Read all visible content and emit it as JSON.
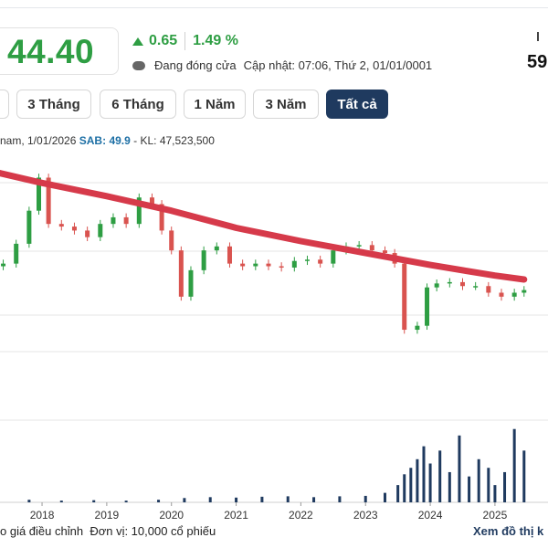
{
  "header": {
    "price": "44.40",
    "change": "0.65",
    "change_pct": "1.49 %",
    "status": "Đang đóng cửa",
    "update": "Cập nhật: 07:06, Thứ 2, 01/01/0001",
    "right_value": "59"
  },
  "ranges": [
    {
      "label": ""
    },
    {
      "label": "3 Tháng"
    },
    {
      "label": "6 Tháng"
    },
    {
      "label": "1 Năm"
    },
    {
      "label": "3 Năm"
    },
    {
      "label": "Tất cả",
      "active": true
    }
  ],
  "legend": {
    "date_text": "nam, 1/01/2026",
    "symbol": "SAB:",
    "value": "49.9",
    "volume_text": "- KL: 47,523,500"
  },
  "footer": {
    "left_text": "o giá điều chỉnh",
    "unit_text": "Đơn vị: 10,000 cổ phiếu",
    "right_link": "Xem đồ thị k"
  },
  "colors": {
    "up": "#2e9e43",
    "down": "#d9534f",
    "ma_line": "#d63a4a",
    "volume": "#1f3a5f",
    "active_button": "#1f3a5f"
  },
  "chart_data": {
    "type": "candlestick",
    "title": "",
    "x_ticks": [
      "2018",
      "2019",
      "2020",
      "2021",
      "2022",
      "2023",
      "2024",
      "2025"
    ],
    "close_series": [
      {
        "x": 2017.4,
        "y": 150
      },
      {
        "x": 2017.6,
        "y": 165
      },
      {
        "x": 2017.8,
        "y": 190
      },
      {
        "x": 2017.95,
        "y": 215
      },
      {
        "x": 2018.1,
        "y": 180
      },
      {
        "x": 2018.3,
        "y": 178
      },
      {
        "x": 2018.5,
        "y": 175
      },
      {
        "x": 2018.7,
        "y": 170
      },
      {
        "x": 2018.9,
        "y": 180
      },
      {
        "x": 2019.1,
        "y": 185
      },
      {
        "x": 2019.3,
        "y": 180
      },
      {
        "x": 2019.5,
        "y": 200
      },
      {
        "x": 2019.7,
        "y": 195
      },
      {
        "x": 2019.85,
        "y": 175
      },
      {
        "x": 2020.0,
        "y": 160
      },
      {
        "x": 2020.15,
        "y": 125
      },
      {
        "x": 2020.3,
        "y": 145
      },
      {
        "x": 2020.5,
        "y": 160
      },
      {
        "x": 2020.7,
        "y": 163
      },
      {
        "x": 2020.9,
        "y": 150
      },
      {
        "x": 2021.1,
        "y": 148
      },
      {
        "x": 2021.3,
        "y": 150
      },
      {
        "x": 2021.5,
        "y": 148
      },
      {
        "x": 2021.7,
        "y": 147
      },
      {
        "x": 2021.9,
        "y": 152
      },
      {
        "x": 2022.1,
        "y": 153
      },
      {
        "x": 2022.3,
        "y": 150
      },
      {
        "x": 2022.5,
        "y": 160
      },
      {
        "x": 2022.7,
        "y": 163
      },
      {
        "x": 2022.9,
        "y": 164
      },
      {
        "x": 2023.1,
        "y": 160
      },
      {
        "x": 2023.3,
        "y": 158
      },
      {
        "x": 2023.45,
        "y": 150
      },
      {
        "x": 2023.6,
        "y": 100
      },
      {
        "x": 2023.8,
        "y": 103
      },
      {
        "x": 2023.95,
        "y": 132
      },
      {
        "x": 2024.1,
        "y": 135
      },
      {
        "x": 2024.3,
        "y": 136
      },
      {
        "x": 2024.5,
        "y": 133
      },
      {
        "x": 2024.7,
        "y": 133
      },
      {
        "x": 2024.9,
        "y": 128
      },
      {
        "x": 2025.1,
        "y": 125
      },
      {
        "x": 2025.3,
        "y": 128
      },
      {
        "x": 2025.45,
        "y": 130
      }
    ],
    "ma_line": [
      {
        "x": 2017.2,
        "y": 220
      },
      {
        "x": 2018.0,
        "y": 211
      },
      {
        "x": 2019.0,
        "y": 201
      },
      {
        "x": 2020.0,
        "y": 190
      },
      {
        "x": 2021.0,
        "y": 177
      },
      {
        "x": 2022.0,
        "y": 167
      },
      {
        "x": 2023.0,
        "y": 158
      },
      {
        "x": 2024.0,
        "y": 149
      },
      {
        "x": 2025.0,
        "y": 141
      },
      {
        "x": 2025.45,
        "y": 138
      }
    ],
    "volume": [
      {
        "x": 2017.3,
        "v": 5
      },
      {
        "x": 2017.8,
        "v": 6
      },
      {
        "x": 2018.3,
        "v": 4
      },
      {
        "x": 2018.8,
        "v": 5
      },
      {
        "x": 2019.3,
        "v": 4
      },
      {
        "x": 2019.8,
        "v": 6
      },
      {
        "x": 2020.2,
        "v": 10
      },
      {
        "x": 2020.6,
        "v": 12
      },
      {
        "x": 2021.0,
        "v": 11
      },
      {
        "x": 2021.4,
        "v": 13
      },
      {
        "x": 2021.8,
        "v": 14
      },
      {
        "x": 2022.2,
        "v": 12
      },
      {
        "x": 2022.6,
        "v": 14
      },
      {
        "x": 2023.0,
        "v": 15
      },
      {
        "x": 2023.3,
        "v": 22
      },
      {
        "x": 2023.5,
        "v": 40
      },
      {
        "x": 2023.6,
        "v": 65
      },
      {
        "x": 2023.7,
        "v": 80
      },
      {
        "x": 2023.8,
        "v": 100
      },
      {
        "x": 2023.9,
        "v": 130
      },
      {
        "x": 2024.0,
        "v": 90
      },
      {
        "x": 2024.15,
        "v": 120
      },
      {
        "x": 2024.3,
        "v": 70
      },
      {
        "x": 2024.45,
        "v": 155
      },
      {
        "x": 2024.6,
        "v": 60
      },
      {
        "x": 2024.75,
        "v": 100
      },
      {
        "x": 2024.9,
        "v": 80
      },
      {
        "x": 2025.0,
        "v": 40
      },
      {
        "x": 2025.15,
        "v": 70
      },
      {
        "x": 2025.3,
        "v": 170
      },
      {
        "x": 2025.45,
        "v": 120
      }
    ],
    "grid": true,
    "legend": "top-left"
  }
}
